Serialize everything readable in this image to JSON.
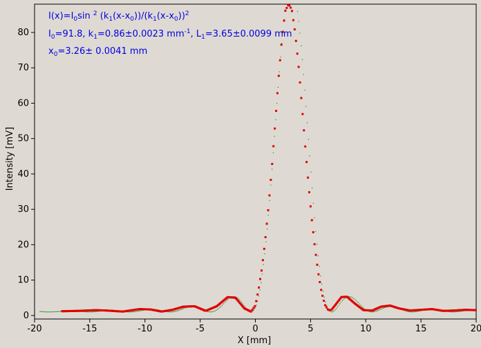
{
  "chart_data": {
    "type": "scatter",
    "xlabel": "X [mm]",
    "ylabel": "Intensity [mV]",
    "xlim": [
      -20,
      20
    ],
    "ylim": [
      -1,
      88
    ],
    "x_ticks": [
      -20,
      -15,
      -10,
      -5,
      0,
      5,
      10,
      15,
      20
    ],
    "y_ticks": [
      0,
      10,
      20,
      30,
      40,
      50,
      60,
      70,
      80
    ],
    "grid": false,
    "annotation": {
      "line1": {
        "a": "I(x)=I",
        "b": "0",
        "c": "sin ",
        "d": "2",
        "e": " (k",
        "f": "1",
        "g": "(x-x",
        "h": "0",
        "i": "))/(k",
        "j": "1",
        "k": "(x-x",
        "l": "0",
        "m": "))",
        "n": "2"
      },
      "line2": {
        "a": "I",
        "b": "0",
        "c": "=91.8,  k",
        "d": "1",
        "e": "=0.86±0.0023 mm",
        "f": "-1",
        "g": ",   L",
        "h": "1",
        "i": "=3.65±0.0099 mm"
      },
      "line3": {
        "a": "x",
        "b": "0",
        "c": "=3.26±   0.0041 mm"
      }
    },
    "series": [
      {
        "style": "measured points",
        "color": "#e00000",
        "x": [
          -17.5,
          -16.0,
          -14.5,
          -13.5,
          -12.0,
          -10.5,
          -9.5,
          -8.5,
          -7.5,
          -6.5,
          -5.5,
          -4.5,
          -3.5,
          -2.5,
          -1.8,
          -1.0,
          -0.4,
          0.0,
          0.3,
          0.6,
          0.9,
          1.2,
          1.5,
          1.8,
          2.1,
          2.4,
          2.7,
          3.0,
          3.3,
          3.6,
          3.9,
          4.2,
          4.5,
          4.8,
          5.1,
          5.4,
          5.7,
          6.0,
          6.3,
          6.6,
          6.9,
          7.3,
          7.8,
          8.3,
          9.0,
          9.8,
          10.6,
          11.4,
          12.2,
          13.0,
          14.0,
          15.0,
          16.0,
          17.0,
          18.0,
          19.0,
          20.0
        ],
        "y": [
          1.2,
          1.3,
          1.5,
          1.4,
          1.1,
          1.8,
          1.7,
          1.1,
          1.6,
          2.5,
          2.6,
          1.3,
          2.6,
          5.2,
          5.0,
          2.0,
          1.1,
          2.8,
          7.5,
          13.5,
          21.5,
          31.0,
          42.0,
          54.5,
          67.0,
          78.0,
          86.0,
          88.0,
          86.5,
          80.0,
          71.0,
          60.0,
          48.5,
          37.5,
          27.5,
          19.0,
          12.0,
          6.5,
          3.0,
          1.5,
          1.6,
          3.2,
          5.2,
          5.3,
          3.4,
          1.5,
          1.4,
          2.5,
          2.8,
          2.0,
          1.4,
          1.6,
          1.8,
          1.3,
          1.4,
          1.6,
          1.5
        ]
      },
      {
        "style": "fitted curve",
        "color": "#208020",
        "function": "I0*sin^2(k1*(x-x0))/(k1*(x-x0))^2",
        "params": {
          "I0": 91.8,
          "k1": 0.86,
          "L1": 3.65,
          "x0": 3.26,
          "offset": 1.0
        }
      }
    ]
  }
}
